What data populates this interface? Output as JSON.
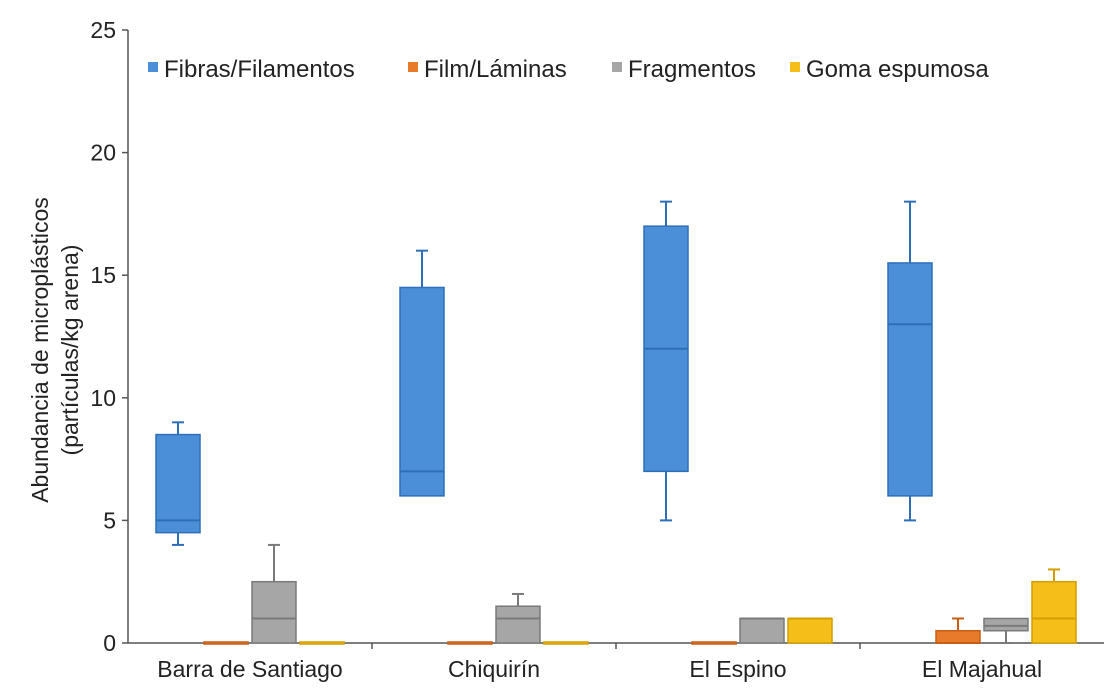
{
  "chart_data": {
    "type": "box",
    "ylabel_line1": "Abundancia de microplásticos",
    "ylabel_line2": "(partículas/kg arena)",
    "ylim": [
      0,
      25
    ],
    "yticks": [
      "0",
      "5",
      "10",
      "15",
      "20",
      "25"
    ],
    "categories": [
      "Barra de Santiago",
      "Chiquirín",
      "El Espino",
      "El Majahual"
    ],
    "legend_position": "top",
    "series": [
      {
        "name": "Fibras/Filamentos",
        "color": "#4a8fd8",
        "stroke": "#2f6fb8",
        "boxes": [
          {
            "min": 4,
            "q1": 4.5,
            "median": 5,
            "q3": 8.5,
            "max": 9
          },
          {
            "min": 6,
            "q1": 6,
            "median": 7,
            "q3": 14.5,
            "max": 16
          },
          {
            "min": 5,
            "q1": 7,
            "median": 12,
            "q3": 17,
            "max": 18
          },
          {
            "min": 5,
            "q1": 6,
            "median": 13,
            "q3": 15.5,
            "max": 18
          }
        ]
      },
      {
        "name": "Film/Láminas",
        "color": "#e87a2c",
        "stroke": "#c85e16",
        "boxes": [
          {
            "min": 0,
            "q1": 0,
            "median": 0,
            "q3": 0,
            "max": 0
          },
          {
            "min": 0,
            "q1": 0,
            "median": 0,
            "q3": 0,
            "max": 0
          },
          {
            "min": 0,
            "q1": 0,
            "median": 0,
            "q3": 0,
            "max": 0
          },
          {
            "min": 0,
            "q1": 0,
            "median": 0,
            "q3": 0.5,
            "max": 1
          }
        ]
      },
      {
        "name": "Fragmentos",
        "color": "#a6a6a6",
        "stroke": "#7a7a7a",
        "boxes": [
          {
            "min": 0,
            "q1": 0,
            "median": 1,
            "q3": 2.5,
            "max": 4
          },
          {
            "min": 0,
            "q1": 0,
            "median": 1,
            "q3": 1.5,
            "max": 2
          },
          {
            "min": 0,
            "q1": 0,
            "median": 1,
            "q3": 1,
            "max": 1
          },
          {
            "min": 0,
            "q1": 0.5,
            "median": 0.7,
            "q3": 1,
            "max": 1
          }
        ]
      },
      {
        "name": "Goma espumosa",
        "color": "#f5bf1a",
        "stroke": "#d49d00",
        "boxes": [
          {
            "min": 0,
            "q1": 0,
            "median": 0,
            "q3": 0,
            "max": 0
          },
          {
            "min": 0,
            "q1": 0,
            "median": 0,
            "q3": 0,
            "max": 0
          },
          {
            "min": 0,
            "q1": 0,
            "median": 1,
            "q3": 1,
            "max": 1
          },
          {
            "min": 0,
            "q1": 0,
            "median": 1,
            "q3": 2.5,
            "max": 3
          }
        ]
      }
    ]
  }
}
